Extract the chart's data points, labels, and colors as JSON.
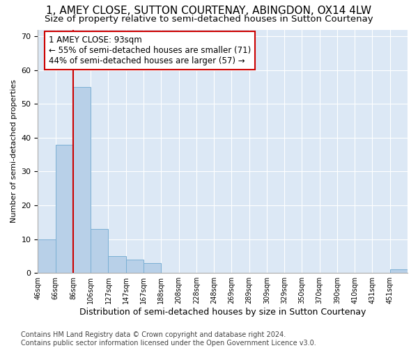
{
  "title": "1, AMEY CLOSE, SUTTON COURTENAY, ABINGDON, OX14 4LW",
  "subtitle": "Size of property relative to semi-detached houses in Sutton Courtenay",
  "xlabel": "Distribution of semi-detached houses by size in Sutton Courtenay",
  "ylabel": "Number of semi-detached properties",
  "bar_values": [
    10,
    38,
    55,
    13,
    5,
    4,
    3,
    0,
    0,
    0,
    0,
    0,
    0,
    0,
    0,
    0,
    0,
    0,
    0,
    0,
    1
  ],
  "bin_labels": [
    "46sqm",
    "66sqm",
    "86sqm",
    "106sqm",
    "127sqm",
    "147sqm",
    "167sqm",
    "188sqm",
    "208sqm",
    "228sqm",
    "248sqm",
    "269sqm",
    "289sqm",
    "309sqm",
    "329sqm",
    "350sqm",
    "370sqm",
    "390sqm",
    "410sqm",
    "431sqm",
    "451sqm"
  ],
  "bar_color": "#b8d0e8",
  "bar_edge_color": "#7aafd4",
  "vline_color": "#cc0000",
  "annotation_text": "1 AMEY CLOSE: 93sqm\n← 55% of semi-detached houses are smaller (71)\n44% of semi-detached houses are larger (57) →",
  "annotation_box_color": "white",
  "annotation_box_edge": "#cc0000",
  "ylim": [
    0,
    72
  ],
  "yticks": [
    0,
    10,
    20,
    30,
    40,
    50,
    60,
    70
  ],
  "background_color": "#dce8f5",
  "footer_text": "Contains HM Land Registry data © Crown copyright and database right 2024.\nContains public sector information licensed under the Open Government Licence v3.0.",
  "title_fontsize": 11,
  "subtitle_fontsize": 9.5,
  "xlabel_fontsize": 9,
  "ylabel_fontsize": 8,
  "annotation_fontsize": 8.5,
  "footer_fontsize": 7
}
